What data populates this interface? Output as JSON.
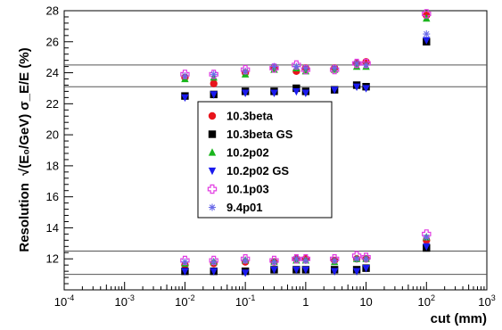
{
  "chart_data": {
    "type": "scatter",
    "title": "",
    "xlabel": "cut (mm)",
    "ylabel_prefix": "Resolution",
    "ylabel_formula": "√(E₀/GeV) σ_E/E (%)",
    "xscale": "log",
    "xlim": [
      0.0001,
      1000
    ],
    "ylim": [
      10,
      28
    ],
    "x_ticks": [
      {
        "value": 0.0001,
        "label": "10",
        "exp": "-4"
      },
      {
        "value": 0.001,
        "label": "10",
        "exp": "-3"
      },
      {
        "value": 0.01,
        "label": "10",
        "exp": "-2"
      },
      {
        "value": 0.1,
        "label": "10",
        "exp": "-1"
      },
      {
        "value": 1,
        "label": "1",
        "exp": ""
      },
      {
        "value": 10,
        "label": "10",
        "exp": ""
      },
      {
        "value": 100,
        "label": "10",
        "exp": "2"
      },
      {
        "value": 1000,
        "label": "10",
        "exp": "3"
      }
    ],
    "y_ticks": [
      {
        "value": 12,
        "label": "12"
      },
      {
        "value": 14,
        "label": "14"
      },
      {
        "value": 16,
        "label": "16"
      },
      {
        "value": 18,
        "label": "18"
      },
      {
        "value": 20,
        "label": "20"
      },
      {
        "value": 22,
        "label": "22"
      },
      {
        "value": 24,
        "label": "24"
      },
      {
        "value": 26,
        "label": "26"
      },
      {
        "value": 28,
        "label": "28"
      }
    ],
    "reference_lines": [
      11.0,
      12.5,
      23.1,
      24.5
    ],
    "grid": false,
    "legend_position": "center-left",
    "x": [
      0.01,
      0.03,
      0.1,
      0.3,
      0.7,
      1,
      3,
      7,
      10,
      100
    ],
    "series": [
      {
        "name": "10.3beta",
        "marker": "circle",
        "color": "#e8141c",
        "high": [
          23.7,
          23.3,
          24.0,
          24.3,
          24.1,
          24.3,
          24.3,
          24.6,
          24.7,
          27.7
        ],
        "low": [
          11.6,
          11.7,
          11.8,
          11.8,
          12.0,
          12.0,
          11.9,
          12.0,
          12.0,
          13.2
        ]
      },
      {
        "name": "10.3beta GS",
        "marker": "square",
        "color": "#000000",
        "high": [
          22.5,
          22.6,
          22.8,
          22.8,
          23.0,
          22.8,
          22.9,
          23.2,
          23.1,
          26.0
        ],
        "low": [
          11.2,
          11.2,
          11.2,
          11.3,
          11.3,
          11.3,
          11.3,
          11.3,
          11.4,
          12.7
        ]
      },
      {
        "name": "10.2p02",
        "marker": "triangle-up",
        "color": "#19b51c",
        "high": [
          23.6,
          23.7,
          23.9,
          24.2,
          24.3,
          24.1,
          24.2,
          24.4,
          24.4,
          27.5
        ],
        "low": [
          11.7,
          11.8,
          11.9,
          11.8,
          11.9,
          11.9,
          11.8,
          12.0,
          12.0,
          13.4
        ]
      },
      {
        "name": "10.2p02 GS",
        "marker": "triangle-down",
        "color": "#1a1aee",
        "high": [
          22.4,
          22.6,
          22.7,
          22.7,
          22.8,
          22.7,
          22.9,
          23.1,
          23.0,
          26.1
        ],
        "low": [
          11.2,
          11.2,
          11.1,
          11.3,
          11.3,
          11.3,
          11.2,
          11.2,
          11.4,
          12.8
        ]
      },
      {
        "name": "10.1p03",
        "marker": "open-cross",
        "color": "#e23ce2",
        "high": [
          23.9,
          23.9,
          24.2,
          24.3,
          24.5,
          24.2,
          24.2,
          24.6,
          24.6,
          27.8
        ],
        "low": [
          11.9,
          11.9,
          12.0,
          11.9,
          12.0,
          12.0,
          12.0,
          12.2,
          12.1,
          13.6
        ]
      },
      {
        "name": "9.4p01",
        "marker": "star",
        "color": "#6a6ae8",
        "high": [
          23.8,
          23.9,
          24.1,
          24.4,
          24.4,
          24.3,
          24.3,
          24.6,
          24.5,
          26.5
        ],
        "low": [
          11.8,
          11.8,
          11.9,
          11.8,
          12.0,
          11.9,
          11.9,
          12.0,
          12.0,
          13.4
        ]
      }
    ]
  }
}
